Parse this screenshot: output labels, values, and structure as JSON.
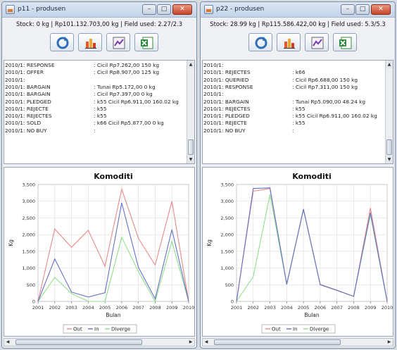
{
  "windows": [
    {
      "title": "p11 - produsen",
      "status": "Stock: 0 kg | Rp101.132.703,00 kg | Field used: 2.27/2.3",
      "log": [
        {
          "k": "2010/1: RESPONSE",
          "v": ": Cicil Rp7.262,00 150 kg"
        },
        {
          "k": "2010/1: OFFER",
          "v": ": Cicil Rp8.907,00 125 kg"
        },
        {
          "k": "2010/1:",
          "v": ""
        },
        {
          "k": "2010/1: BARGAIN",
          "v": ": Tunai Rp5.172,00 0 kg"
        },
        {
          "k": "2010/1: BARGAIN",
          "v": ": Cicil Rp7.397,00 0 kg"
        },
        {
          "k": "2010/1: PLEDGED",
          "v": ": k55 Cicil Rp6.911,00 160.02 kg"
        },
        {
          "k": "2010/1: REJECTE",
          "v": ": k55"
        },
        {
          "k": "2010/1: REJECTES",
          "v": ": k55"
        },
        {
          "k": "2010/1: SOLD",
          "v": ": k66 Cicil Rp5.877,00 0 kg"
        },
        {
          "k": "2010/1: NO BUY",
          "v": ":"
        }
      ]
    },
    {
      "title": "p22 - produsen",
      "status": "Stock: 28.99 kg | Rp115.586.422,00 kg | Field used: 5.3/5.3",
      "log": [
        {
          "k": "2010/1:",
          "v": ""
        },
        {
          "k": "2010/1: REJECTES",
          "v": ": k66"
        },
        {
          "k": "2010/1: QUERIED",
          "v": ": Cicil Rp6.688,00 150 kg"
        },
        {
          "k": "2010/1: RESPONSE",
          "v": ": Cicil Rp7.311,00 150 kg"
        },
        {
          "k": "2010/1:",
          "v": ""
        },
        {
          "k": "2010/1: BARGAIN",
          "v": ": Tunai Rp5.090,00 48.24 kg"
        },
        {
          "k": "2010/1: REJECTES",
          "v": ": k55"
        },
        {
          "k": "2010/1: PLEDGED",
          "v": ": k55 Cicil Rp6.911,00 160.02 kg"
        },
        {
          "k": "2010/1: REJECTE",
          "v": ": k55"
        },
        {
          "k": "2010/1: NO BUY",
          "v": ":"
        }
      ]
    }
  ],
  "window_buttons": {
    "minimize": "–",
    "maximize": "□",
    "close": "✕"
  },
  "toolbar_icons": [
    "refresh-icon",
    "bar-chart-icon",
    "line-chart-icon",
    "excel-export-icon"
  ],
  "colors": {
    "out": "#e88a8a",
    "in": "#6670c8",
    "diverge": "#8de08d"
  },
  "chart_data": [
    {
      "type": "line",
      "title": "Komoditi",
      "xlabel": "Bulan",
      "ylabel": "Kg",
      "x": [
        2001,
        2002,
        2003,
        2004,
        2005,
        2006,
        2007,
        2008,
        2009,
        2010
      ],
      "ylim": [
        0,
        3500
      ],
      "yticks": [
        "0",
        "500",
        "1,000",
        "1,500",
        "2,000",
        "2,500",
        "3,000",
        "3,500"
      ],
      "grid": true,
      "legend": "bottom",
      "series": [
        {
          "name": "Out",
          "values": [
            0,
            2170,
            1620,
            2130,
            1050,
            3360,
            1890,
            1090,
            3000,
            0
          ]
        },
        {
          "name": "In",
          "values": [
            0,
            1270,
            280,
            130,
            260,
            2950,
            1020,
            80,
            2150,
            0
          ]
        },
        {
          "name": "Diverge",
          "values": [
            0,
            720,
            240,
            0,
            0,
            1920,
            890,
            0,
            1800,
            0
          ]
        }
      ]
    },
    {
      "type": "line",
      "title": "Komoditi",
      "xlabel": "Bulan",
      "ylabel": "Kg",
      "x": [
        2001,
        2002,
        2003,
        2004,
        2005,
        2006,
        2007,
        2008,
        2009,
        2010
      ],
      "ylim": [
        0,
        3500
      ],
      "yticks": [
        "0",
        "500",
        "1,000",
        "1,500",
        "2,000",
        "2,500",
        "3,000",
        "3,500"
      ],
      "grid": true,
      "legend": "bottom",
      "series": [
        {
          "name": "Out",
          "values": [
            0,
            3300,
            3380,
            520,
            2770,
            510,
            340,
            150,
            2800,
            0
          ]
        },
        {
          "name": "In",
          "values": [
            0,
            3380,
            3400,
            510,
            2760,
            500,
            330,
            150,
            2660,
            0
          ]
        },
        {
          "name": "Diverge",
          "values": [
            0,
            740,
            3200,
            500,
            2750,
            500,
            330,
            150,
            2600,
            0
          ]
        }
      ]
    }
  ]
}
